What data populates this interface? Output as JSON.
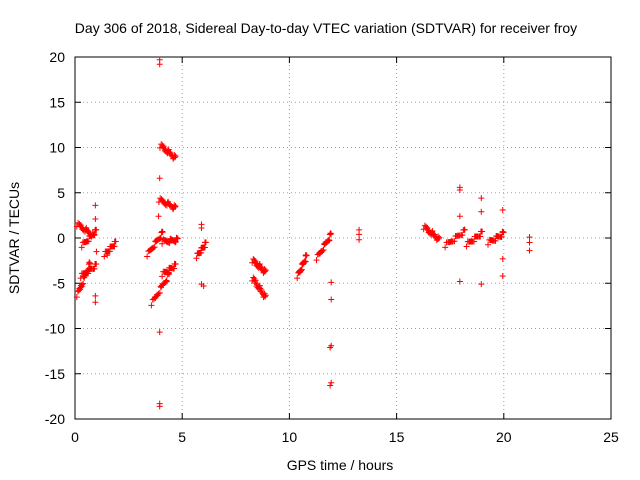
{
  "chart_data": {
    "type": "scatter",
    "title": "Day 306 of 2018, Sidereal Day-to-day VTEC variation (SDTVAR) for receiver froy",
    "xlabel": "GPS time / hours",
    "ylabel": "SDTVAR / TECUs",
    "xlim": [
      0,
      25
    ],
    "ylim": [
      -20,
      20
    ],
    "xticks": [
      0,
      5,
      10,
      15,
      20,
      25
    ],
    "yticks": [
      -20,
      -15,
      -10,
      -5,
      0,
      5,
      10,
      15,
      20
    ],
    "grid": true,
    "marker": "+",
    "color": "#ff0000",
    "segments": [
      {
        "x": [
          0.12,
          0.9
        ],
        "y": [
          1.5,
          0.2
        ]
      },
      {
        "x": [
          0.12,
          0.7
        ],
        "y": [
          -6.3,
          -2.8
        ]
      },
      {
        "x": [
          0.3,
          1.0
        ],
        "y": [
          -4.2,
          -3.0
        ]
      },
      {
        "x": [
          0.35,
          1.0
        ],
        "y": [
          -0.8,
          0.8
        ]
      },
      {
        "x": [
          1.4,
          1.9
        ],
        "y": [
          -1.8,
          -0.5
        ]
      },
      {
        "x": [
          3.4,
          4.1
        ],
        "y": [
          -1.8,
          0.6
        ]
      },
      {
        "x": [
          3.6,
          4.4
        ],
        "y": [
          -7.2,
          -4.0
        ]
      },
      {
        "x": [
          4.0,
          4.7
        ],
        "y": [
          10.2,
          8.8
        ]
      },
      {
        "x": [
          3.95,
          4.7
        ],
        "y": [
          4.2,
          3.3
        ]
      },
      {
        "x": [
          4.1,
          4.7
        ],
        "y": [
          -4.0,
          -3.0
        ]
      },
      {
        "x": [
          4.1,
          4.8
        ],
        "y": [
          -0.4,
          -0.2
        ]
      },
      {
        "x": [
          5.7,
          6.1
        ],
        "y": [
          -2.0,
          -0.6
        ]
      },
      {
        "x": [
          8.3,
          8.9
        ],
        "y": [
          -2.5,
          -3.8
        ]
      },
      {
        "x": [
          8.3,
          8.9
        ],
        "y": [
          -4.5,
          -6.6
        ]
      },
      {
        "x": [
          10.4,
          10.8
        ],
        "y": [
          -4.2,
          -2.0
        ]
      },
      {
        "x": [
          11.3,
          11.95
        ],
        "y": [
          -2.2,
          0.4
        ]
      },
      {
        "x": [
          16.3,
          17.0
        ],
        "y": [
          1.2,
          -0.2
        ]
      },
      {
        "x": [
          17.3,
          18.2
        ],
        "y": [
          -0.8,
          0.8
        ]
      },
      {
        "x": [
          18.3,
          19.0
        ],
        "y": [
          -0.7,
          0.6
        ]
      },
      {
        "x": [
          19.3,
          20.0
        ],
        "y": [
          -0.5,
          0.5
        ]
      }
    ],
    "points": [
      {
        "x": 0.95,
        "y": 3.6
      },
      {
        "x": 0.95,
        "y": 2.1
      },
      {
        "x": 0.95,
        "y": -6.4
      },
      {
        "x": 0.95,
        "y": -7.1
      },
      {
        "x": 1.0,
        "y": -1.5
      },
      {
        "x": 1.5,
        "y": -1.9
      },
      {
        "x": 3.95,
        "y": 19.7
      },
      {
        "x": 3.95,
        "y": 19.2
      },
      {
        "x": 3.95,
        "y": 6.6
      },
      {
        "x": 3.9,
        "y": 2.4
      },
      {
        "x": 3.95,
        "y": -10.4
      },
      {
        "x": 3.95,
        "y": -18.3
      },
      {
        "x": 3.95,
        "y": -18.6
      },
      {
        "x": 5.9,
        "y": 1.5
      },
      {
        "x": 5.9,
        "y": 1.1
      },
      {
        "x": 5.9,
        "y": -5.1
      },
      {
        "x": 6.0,
        "y": -5.3
      },
      {
        "x": 11.95,
        "y": -4.9
      },
      {
        "x": 11.95,
        "y": -6.8
      },
      {
        "x": 11.95,
        "y": -11.9
      },
      {
        "x": 11.9,
        "y": -12.1
      },
      {
        "x": 11.95,
        "y": -16.0
      },
      {
        "x": 11.9,
        "y": -16.3
      },
      {
        "x": 13.25,
        "y": 0.9
      },
      {
        "x": 13.25,
        "y": 0.4
      },
      {
        "x": 13.25,
        "y": -0.2
      },
      {
        "x": 17.95,
        "y": 5.6
      },
      {
        "x": 17.95,
        "y": 5.3
      },
      {
        "x": 17.95,
        "y": 2.4
      },
      {
        "x": 17.95,
        "y": -4.8
      },
      {
        "x": 18.95,
        "y": 4.4
      },
      {
        "x": 18.95,
        "y": 2.9
      },
      {
        "x": 18.95,
        "y": -5.1
      },
      {
        "x": 19.95,
        "y": 3.1
      },
      {
        "x": 19.95,
        "y": 0.7
      },
      {
        "x": 19.95,
        "y": -2.3
      },
      {
        "x": 19.95,
        "y": -4.2
      },
      {
        "x": 21.2,
        "y": 0.1
      },
      {
        "x": 21.2,
        "y": -0.5
      },
      {
        "x": 21.2,
        "y": -1.4
      }
    ]
  }
}
